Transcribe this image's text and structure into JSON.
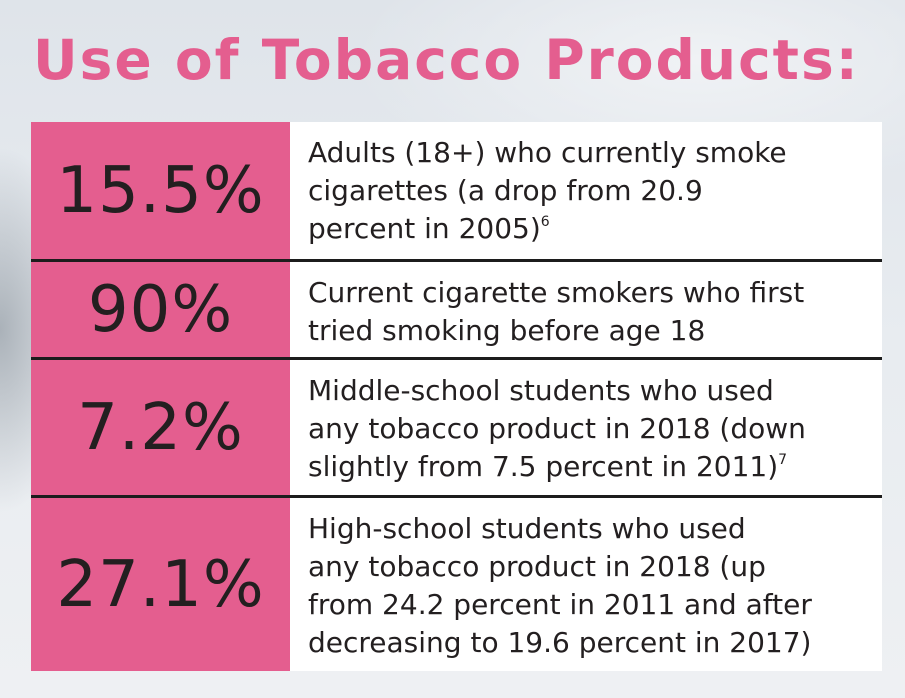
{
  "title": "Use of Tobacco Products:",
  "rows": [
    {
      "percent": "15.5%",
      "lines": [
        "Adults (18+) who currently smoke",
        "cigarettes (a drop from 20.9",
        "percent in 2005)"
      ],
      "footnote": "6"
    },
    {
      "percent": "90%",
      "lines": [
        "Current cigarette smokers who first",
        "tried smoking before age 18"
      ],
      "footnote": ""
    },
    {
      "percent": "7.2%",
      "lines": [
        "Middle-school students who used",
        "any tobacco product in 2018 (down",
        "slightly from 7.5 percent in 2011)"
      ],
      "footnote": "7"
    },
    {
      "percent": "27.1%",
      "lines": [
        "High-school students who used",
        "any tobacco product in 2018 (up",
        "from 24.2 percent in 2011 and after",
        "decreasing to 19.6 percent in 2017)"
      ],
      "footnote": ""
    }
  ],
  "colors": {
    "accent": "#e45e8f",
    "text": "#231f20",
    "divider": "#1c1c1c"
  }
}
